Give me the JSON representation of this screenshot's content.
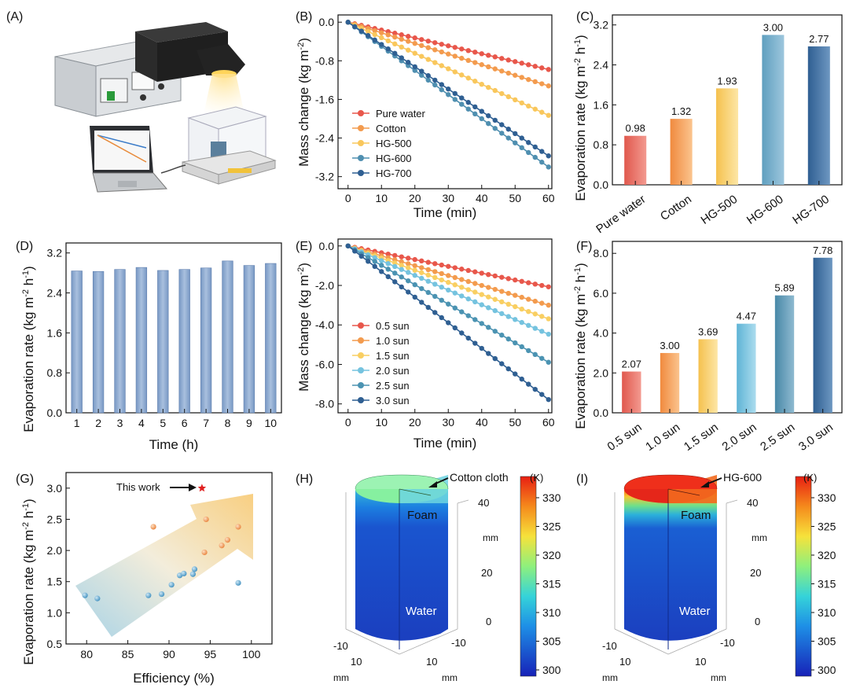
{
  "panel_labels": [
    "(A)",
    "(B)",
    "(C)",
    "(D)",
    "(E)",
    "(F)",
    "(G)",
    "(H)",
    "(I)"
  ],
  "colors": {
    "pure_water": "#e8574b",
    "cotton": "#f39b4e",
    "hg500": "#f9c75c",
    "hg600": "#4f8fb0",
    "hg700": "#2f5f92",
    "bar_d": "#7f9fc9",
    "s05": "#e8574b",
    "s10": "#f39b4e",
    "s15": "#f9cf62",
    "s20": "#75c3df",
    "s25": "#4b93b2",
    "s30": "#2f5f92"
  },
  "chart_data": [
    {
      "id": "A",
      "type": "other",
      "description_hidden": true,
      "texts": []
    },
    {
      "id": "B",
      "type": "line",
      "xlabel": "Time (min)",
      "ylabel": "Mass change (kg m-2)",
      "xlim": [
        -3,
        61
      ],
      "ylim": [
        -3.45,
        0.15
      ],
      "xticks": [
        0,
        10,
        20,
        30,
        40,
        50,
        60
      ],
      "yticks": [
        0.0,
        -0.8,
        -1.6,
        -2.4,
        -3.2
      ],
      "ytick_labels": [
        "0.0",
        "-0.8",
        "-1.6",
        "-2.4",
        "-3.2"
      ],
      "series": [
        {
          "name": "Pure water",
          "rate": 0.98,
          "end": -0.98
        },
        {
          "name": "Cotton",
          "rate": 1.32,
          "end": -1.32
        },
        {
          "name": "HG-500",
          "rate": 1.93,
          "end": -1.93
        },
        {
          "name": "HG-600",
          "rate": 3.0,
          "end": -3.0
        },
        {
          "name": "HG-700",
          "rate": 2.77,
          "end": -2.77
        }
      ]
    },
    {
      "id": "C",
      "type": "bar",
      "ylabel": "Evaporation rate (kg m-2 h-1)",
      "ylim": [
        0,
        3.4
      ],
      "yticks": [
        "0.0",
        "0.8",
        "1.6",
        "2.4",
        "3.2"
      ],
      "categories": [
        "Pure water",
        "Cotton",
        "HG-500",
        "HG-600",
        "HG-700"
      ],
      "values": [
        0.98,
        1.32,
        1.93,
        3.0,
        2.77
      ],
      "value_labels": [
        "0.98",
        "1.32",
        "1.93",
        "3.00",
        "2.77"
      ]
    },
    {
      "id": "D",
      "type": "bar",
      "xlabel": "Time (h)",
      "ylabel": "Evaporation rate (kg m-2 h-1)",
      "ylim": [
        0,
        3.4
      ],
      "yticks": [
        "0.0",
        "0.8",
        "1.6",
        "2.4",
        "3.2"
      ],
      "categories": [
        "1",
        "2",
        "3",
        "4",
        "5",
        "6",
        "7",
        "8",
        "9",
        "10"
      ],
      "values": [
        2.84,
        2.83,
        2.87,
        2.91,
        2.85,
        2.87,
        2.9,
        3.04,
        2.95,
        2.99
      ]
    },
    {
      "id": "E",
      "type": "line",
      "xlabel": "Time (min)",
      "ylabel": "Mass change (kg m-2)",
      "xlim": [
        -3,
        61
      ],
      "ylim": [
        -8.45,
        0.35
      ],
      "xticks": [
        0,
        10,
        20,
        30,
        40,
        50,
        60
      ],
      "yticks": [
        0.0,
        -2.0,
        -4.0,
        -6.0,
        -8.0
      ],
      "ytick_labels": [
        "0.0",
        "-2.0",
        "-4.0",
        "-6.0",
        "-8.0"
      ],
      "series": [
        {
          "name": "0.5 sun",
          "rate": 2.07,
          "end": -2.07
        },
        {
          "name": "1.0 sun",
          "rate": 3.0,
          "end": -3.0
        },
        {
          "name": "1.5 sun",
          "rate": 3.69,
          "end": -3.69
        },
        {
          "name": "2.0 sun",
          "rate": 4.47,
          "end": -4.47
        },
        {
          "name": "2.5 sun",
          "rate": 5.89,
          "end": -5.89
        },
        {
          "name": "3.0 sun",
          "rate": 7.78,
          "end": -7.78
        }
      ]
    },
    {
      "id": "F",
      "type": "bar",
      "ylabel": "Evaporation rate (kg m-2 h-1)",
      "ylim": [
        0,
        8.6
      ],
      "yticks": [
        "0.0",
        "2.0",
        "4.0",
        "6.0",
        "8.0"
      ],
      "categories": [
        "0.5 sun",
        "1.0 sun",
        "1.5 sun",
        "2.0 sun",
        "2.5 sun",
        "3.0 sun"
      ],
      "values": [
        2.07,
        3.0,
        3.69,
        4.47,
        5.89,
        7.78
      ],
      "value_labels": [
        "2.07",
        "3.00",
        "3.69",
        "4.47",
        "5.89",
        "7.78"
      ]
    },
    {
      "id": "G",
      "type": "scatter",
      "xlabel": "Efficiency (%)",
      "ylabel": "Evaporation rate (kg m-2 h-1)",
      "xlim": [
        77.5,
        102.5
      ],
      "ylim": [
        0.5,
        3.25
      ],
      "xticks": [
        "80",
        "85",
        "90",
        "95",
        "100"
      ],
      "yticks": [
        "0.5",
        "1.0",
        "1.5",
        "2.0",
        "2.5",
        "3.0"
      ],
      "annotation": "This work",
      "this_work": {
        "x": 94,
        "y": 3.0
      },
      "points": [
        {
          "x": 79.8,
          "y": 1.28
        },
        {
          "x": 81.3,
          "y": 1.23
        },
        {
          "x": 87.5,
          "y": 1.28
        },
        {
          "x": 89.1,
          "y": 1.3
        },
        {
          "x": 90.3,
          "y": 1.45
        },
        {
          "x": 91.3,
          "y": 1.6
        },
        {
          "x": 91.8,
          "y": 1.63
        },
        {
          "x": 92.9,
          "y": 1.62
        },
        {
          "x": 93.1,
          "y": 1.7
        },
        {
          "x": 88.1,
          "y": 2.38
        },
        {
          "x": 94.5,
          "y": 2.5
        },
        {
          "x": 94.3,
          "y": 1.97
        },
        {
          "x": 96.4,
          "y": 2.08
        },
        {
          "x": 97.1,
          "y": 2.17
        },
        {
          "x": 98.4,
          "y": 2.38
        },
        {
          "x": 98.4,
          "y": 1.48
        }
      ]
    },
    {
      "id": "H",
      "type": "heatmap",
      "labels": {
        "top": "Cotton cloth",
        "middle": "Foam",
        "bottom": "Water"
      },
      "axis_unit": "mm",
      "z_ticks": [
        "40",
        "20",
        "0"
      ],
      "xy_ticks": [
        "-10",
        "10",
        "10",
        "-10"
      ],
      "colorbar_unit": "(K)",
      "colorbar_ticks": [
        "330",
        "325",
        "320",
        "315",
        "310",
        "305",
        "300"
      ]
    },
    {
      "id": "I",
      "type": "heatmap",
      "labels": {
        "top": "HG-600",
        "middle": "Foam",
        "bottom": "Water"
      },
      "axis_unit": "mm",
      "z_ticks": [
        "40",
        "20",
        "0"
      ],
      "xy_ticks": [
        "-10",
        "10",
        "10",
        "-10"
      ],
      "colorbar_unit": "(K)",
      "colorbar_ticks": [
        "330",
        "325",
        "320",
        "315",
        "310",
        "305",
        "300"
      ]
    }
  ]
}
